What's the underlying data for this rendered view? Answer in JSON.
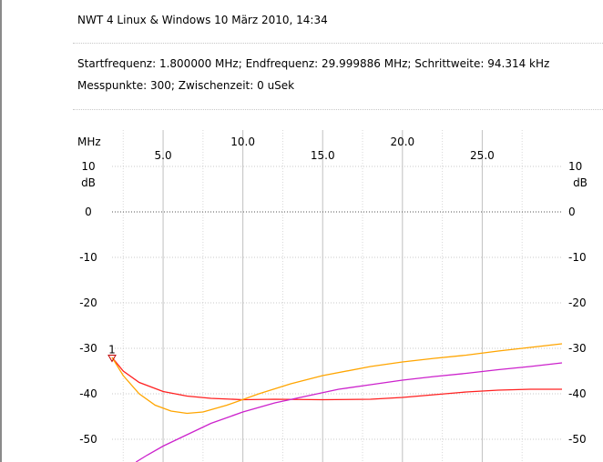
{
  "header": {
    "title": "NWT 4 Linux & Windows  10 März 2010, 14:34",
    "line1": "Startfrequenz: 1.800000 MHz; Endfrequenz: 29.999886 MHz; Schrittweite: 94.314 kHz",
    "line2": "Messpunkte:  300; Zwischenzeit:    0 uSek"
  },
  "chart_data": {
    "type": "line",
    "xlabel": "MHz",
    "ylabel": "dB",
    "xlim": [
      1.8,
      30.0
    ],
    "ylim": [
      -55,
      10
    ],
    "x_ticks_upper": [
      "10.0",
      "20.0"
    ],
    "x_ticks_lower": [
      "5.0",
      "15.0",
      "25.0"
    ],
    "y_ticks_left": [
      "10",
      "0",
      "-10",
      "-20",
      "-30",
      "-40",
      "-50"
    ],
    "y_ticks_right": [
      "10",
      "0",
      "-10",
      "-20",
      "-30",
      "-40",
      "-50"
    ],
    "y_unit_left": "dB",
    "y_unit_right": "dB",
    "grid": true,
    "marker": {
      "label": "1",
      "x": 1.8,
      "y": -32.5
    },
    "series": [
      {
        "color": "#ff2020",
        "x": [
          1.8,
          2.5,
          3.5,
          5,
          6.5,
          8,
          10,
          12,
          15,
          18,
          20,
          22,
          24,
          26,
          28,
          30
        ],
        "y": [
          -32,
          -35,
          -37.5,
          -39.5,
          -40.5,
          -41,
          -41.3,
          -41.2,
          -41.3,
          -41.2,
          -40.8,
          -40.2,
          -39.6,
          -39.2,
          -39,
          -39
        ]
      },
      {
        "color": "#ffa500",
        "x": [
          1.8,
          2.5,
          3.5,
          4.5,
          5.5,
          6.5,
          7.5,
          9,
          11,
          13,
          15,
          18,
          20,
          22,
          24,
          26,
          28,
          30
        ],
        "y": [
          -32,
          -36,
          -40,
          -42.5,
          -43.8,
          -44.3,
          -44,
          -42.5,
          -40,
          -37.8,
          -36,
          -34,
          -33,
          -32.2,
          -31.5,
          -30.6,
          -29.8,
          -29
        ]
      },
      {
        "color": "#cc22cc",
        "x": [
          3.3,
          4,
          5,
          6.5,
          8,
          10,
          12,
          14,
          16,
          18,
          20,
          22,
          24,
          26,
          28,
          30
        ],
        "y": [
          -55,
          -53.5,
          -51.5,
          -49,
          -46.5,
          -44,
          -42,
          -40.5,
          -39,
          -38,
          -37,
          -36.2,
          -35.5,
          -34.7,
          -34,
          -33.2
        ]
      }
    ]
  }
}
